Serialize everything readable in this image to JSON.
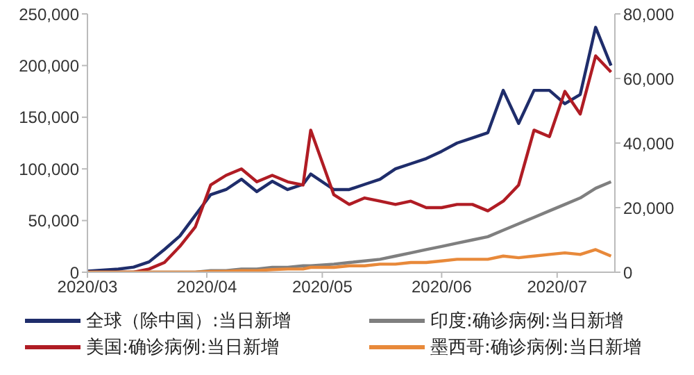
{
  "chart_data": {
    "type": "line",
    "x": [
      "2020-03-01",
      "2020-03-05",
      "2020-03-09",
      "2020-03-13",
      "2020-03-17",
      "2020-03-21",
      "2020-03-25",
      "2020-03-29",
      "2020-04-02",
      "2020-04-06",
      "2020-04-10",
      "2020-04-14",
      "2020-04-18",
      "2020-04-22",
      "2020-04-26",
      "2020-04-28",
      "2020-05-04",
      "2020-05-08",
      "2020-05-12",
      "2020-05-16",
      "2020-05-20",
      "2020-05-24",
      "2020-05-28",
      "2020-06-01",
      "2020-06-05",
      "2020-06-09",
      "2020-06-13",
      "2020-06-17",
      "2020-06-21",
      "2020-06-25",
      "2020-06-29",
      "2020-07-03",
      "2020-07-07",
      "2020-07-11",
      "2020-07-15"
    ],
    "series": [
      {
        "name": "全球（除中国）:当日新增",
        "color": "#1f2d6b",
        "values": [
          1000,
          2000,
          3000,
          5000,
          10000,
          22000,
          35000,
          55000,
          75000,
          80000,
          90000,
          78000,
          88000,
          80000,
          85000,
          95000,
          80000,
          80000,
          85000,
          90000,
          100000,
          105000,
          110000,
          117000,
          125000,
          130000,
          135000,
          176000,
          144000,
          176000,
          176000,
          163000,
          172000,
          237000,
          200000
        ]
      },
      {
        "name": "美国:确诊病例:当日新增",
        "color": "#b01c24",
        "axis": "y2",
        "values": [
          0,
          0,
          0,
          0,
          1000,
          3000,
          8000,
          14000,
          27000,
          30000,
          32000,
          28000,
          30000,
          28000,
          27000,
          44000,
          24000,
          21000,
          23000,
          22000,
          21000,
          22000,
          20000,
          20000,
          21000,
          21000,
          19000,
          22000,
          27000,
          44000,
          42000,
          56000,
          49000,
          67000,
          62000
        ]
      },
      {
        "name": "印度:确诊病例:当日新增",
        "color": "#7f7f7f",
        "axis": "y2",
        "values": [
          0,
          0,
          0,
          0,
          0,
          0,
          0,
          0,
          500,
          500,
          1000,
          1000,
          1500,
          1500,
          2000,
          2000,
          2500,
          3000,
          3500,
          4000,
          5000,
          6000,
          7000,
          8000,
          9000,
          10000,
          11000,
          13000,
          15000,
          17000,
          19000,
          21000,
          23000,
          26000,
          28000
        ]
      },
      {
        "name": "墨西哥:确诊病例:当日新增",
        "color": "#e8893a",
        "axis": "y2",
        "values": [
          0,
          0,
          0,
          0,
          0,
          0,
          0,
          0,
          200,
          300,
          500,
          500,
          800,
          1000,
          1000,
          1500,
          1500,
          2000,
          2000,
          2500,
          2500,
          3000,
          3000,
          3500,
          4000,
          4000,
          4000,
          5000,
          4500,
          5000,
          5500,
          6000,
          5500,
          7000,
          5000
        ]
      }
    ],
    "xlim": [
      "2020-03-01",
      "2020-07-16"
    ],
    "xticks": [
      {
        "value": "2020-03-01",
        "label": "2020/03"
      },
      {
        "value": "2020-04-01",
        "label": "2020/04"
      },
      {
        "value": "2020-05-01",
        "label": "2020/05"
      },
      {
        "value": "2020-06-01",
        "label": "2020/06"
      },
      {
        "value": "2020-07-01",
        "label": "2020/07"
      }
    ],
    "ylim": [
      0,
      250000
    ],
    "yticks": [
      {
        "value": 0,
        "label": "0"
      },
      {
        "value": 50000,
        "label": "50,000"
      },
      {
        "value": 100000,
        "label": "100,000"
      },
      {
        "value": 150000,
        "label": "150,000"
      },
      {
        "value": 200000,
        "label": "200,000"
      },
      {
        "value": 250000,
        "label": "250,000"
      }
    ],
    "y2lim": [
      0,
      80000
    ],
    "y2ticks": [
      {
        "value": 0,
        "label": "0"
      },
      {
        "value": 20000,
        "label": "20,000"
      },
      {
        "value": 40000,
        "label": "40,000"
      },
      {
        "value": 60000,
        "label": "60,000"
      },
      {
        "value": 80000,
        "label": "80,000"
      }
    ],
    "grid": false,
    "legend": "bottom",
    "marker": "none",
    "line_style": "solid"
  }
}
